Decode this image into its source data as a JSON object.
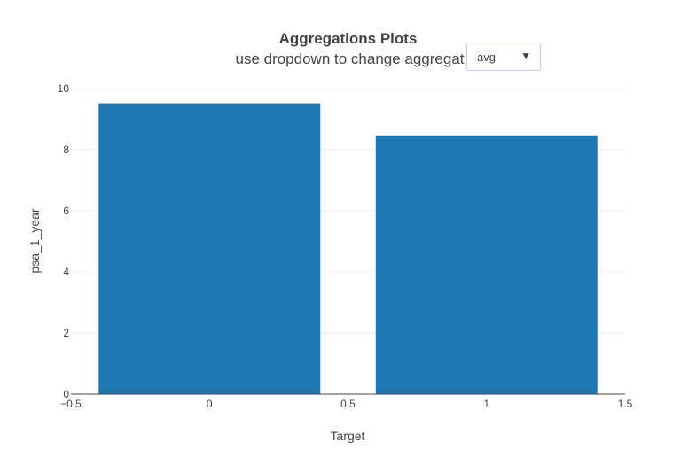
{
  "chart_data": {
    "type": "bar",
    "title": "Aggregations Plots",
    "subtitle": "use dropdown to change aggregat",
    "xlabel": "Target",
    "ylabel": "psa_1_year",
    "x": [
      0,
      1
    ],
    "values": [
      9.52,
      8.47
    ],
    "bar_color": "#1f77b4",
    "xlim": [
      -0.5,
      1.5
    ],
    "ylim": [
      0,
      10
    ],
    "x_ticks": [
      -0.5,
      0,
      0.5,
      1,
      1.5
    ],
    "x_tick_labels": [
      "−0.5",
      "0",
      "0.5",
      "1",
      "1.5"
    ],
    "y_ticks": [
      0,
      2,
      4,
      6,
      8,
      10
    ],
    "y_tick_labels": [
      "0",
      "2",
      "4",
      "6",
      "8",
      "10"
    ],
    "grid": true
  },
  "dropdown": {
    "selected": "avg",
    "arrow": "▼"
  }
}
